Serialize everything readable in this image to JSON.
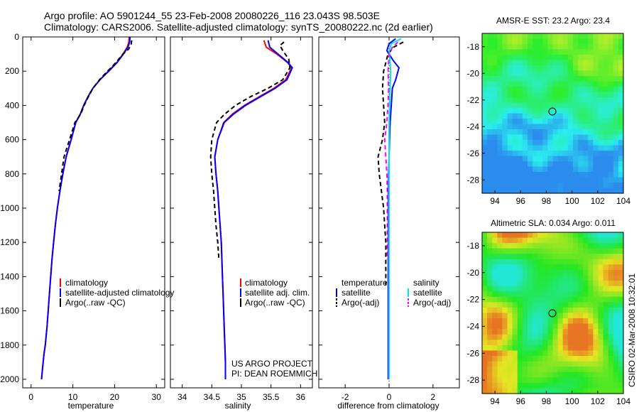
{
  "header": {
    "line1": "Argo profile: AO 5901244_55 23-Feb-2008 20080226_116 23.043S 98.503E",
    "line2": "Climatology: CARS2006. Satellite-adjusted climatology: synTS_20080222.nc (2d earlier)"
  },
  "credit": "CSIRO 02-Mar-2008 10:32:01",
  "project": {
    "line1": "US ARGO PROJECT",
    "line2": "PI: DEAN ROEMMICH"
  },
  "colors": {
    "climatology": "#ff0000",
    "satellite": "#0000ff",
    "argo": "#000000",
    "sat_sal": "#00e5e5",
    "argo_sal": "#ff00ff"
  },
  "chart_data": [
    {
      "type": "line",
      "xlabel": "temperature",
      "xlim": [
        -2,
        32
      ],
      "ylim": [
        2050,
        0
      ],
      "xticks": [
        0,
        10,
        20,
        30
      ],
      "yticks": [
        0,
        200,
        400,
        600,
        800,
        1000,
        1200,
        1400,
        1600,
        1800,
        2000
      ],
      "legend": [
        "climatology",
        "satellite-adjusted climatology",
        "Argo(..raw -QC)"
      ],
      "series": [
        {
          "name": "climatology",
          "color": "#ff0000",
          "dash": false,
          "x": [
            23.5,
            23.4,
            23.0,
            22.0,
            20.5,
            18.5,
            16.5,
            14.8,
            13.6,
            12.6,
            11.8,
            10.7,
            9.6,
            8.4,
            7.6,
            6.9,
            6.3,
            5.8,
            5.4,
            5.0,
            4.7,
            4.4,
            4.1,
            3.8,
            3.6,
            3.4,
            3.1,
            2.9,
            2.7,
            2.5
          ],
          "y": [
            0,
            30,
            60,
            100,
            150,
            200,
            250,
            300,
            350,
            400,
            450,
            500,
            600,
            700,
            800,
            900,
            1000,
            1100,
            1200,
            1300,
            1400,
            1500,
            1600,
            1700,
            1750,
            1800,
            1850,
            1900,
            1950,
            2000
          ]
        },
        {
          "name": "satellite-adjusted climatology",
          "color": "#0000ff",
          "dash": false,
          "x": [
            23.7,
            23.6,
            23.2,
            22.1,
            20.6,
            18.6,
            16.5,
            14.8,
            13.6,
            12.6,
            11.8,
            10.7,
            9.6,
            8.4,
            7.6,
            6.9,
            6.3,
            5.8,
            5.4,
            5.0,
            4.7,
            4.4,
            4.1,
            3.8,
            3.6,
            3.4,
            3.1,
            2.9,
            2.7,
            2.5
          ],
          "y": [
            0,
            30,
            60,
            100,
            150,
            200,
            250,
            300,
            350,
            400,
            450,
            500,
            600,
            700,
            800,
            900,
            1000,
            1100,
            1200,
            1300,
            1400,
            1500,
            1600,
            1700,
            1750,
            1800,
            1850,
            1900,
            1950,
            2000
          ]
        },
        {
          "name": "Argo(..raw -QC)",
          "color": "#000000",
          "dash": true,
          "x": [
            24.1,
            24.0,
            23.4,
            22.0,
            20.3,
            18.3,
            16.4,
            14.8,
            13.7,
            12.7,
            11.9,
            10.5,
            9.2,
            7.9,
            7.3,
            6.7
          ],
          "y": [
            20,
            40,
            70,
            100,
            150,
            200,
            250,
            300,
            350,
            400,
            450,
            500,
            600,
            700,
            800,
            900
          ]
        }
      ]
    },
    {
      "type": "line",
      "xlabel": "salinity",
      "xlim": [
        33.8,
        36.2
      ],
      "ylim": [
        2050,
        0
      ],
      "xticks": [
        34,
        34.5,
        35,
        35.5,
        36
      ],
      "legend": [
        "climatology",
        "satellite adj. clim.",
        "Argo(..raw -QC)"
      ],
      "series": [
        {
          "name": "climatology",
          "color": "#ff0000",
          "dash": false,
          "x": [
            35.38,
            35.42,
            35.6,
            35.78,
            35.85,
            35.75,
            35.55,
            35.3,
            35.05,
            34.85,
            34.7,
            34.6,
            34.55,
            34.57,
            34.6,
            34.62,
            34.64,
            34.66,
            34.67,
            34.68,
            34.69,
            34.7,
            34.71,
            34.72,
            34.73,
            34.73
          ],
          "y": [
            20,
            60,
            100,
            150,
            180,
            250,
            300,
            350,
            400,
            450,
            500,
            600,
            700,
            800,
            900,
            1000,
            1100,
            1200,
            1300,
            1400,
            1500,
            1600,
            1700,
            1800,
            1900,
            2000
          ]
        },
        {
          "name": "satellite adj. clim.",
          "color": "#0000ff",
          "dash": false,
          "x": [
            35.45,
            35.48,
            35.62,
            35.79,
            35.86,
            35.77,
            35.57,
            35.32,
            35.07,
            34.87,
            34.71,
            34.6,
            34.55,
            34.57,
            34.6,
            34.62,
            34.64,
            34.66,
            34.67,
            34.68,
            34.69,
            34.7,
            34.71,
            34.72,
            34.73,
            34.73
          ],
          "y": [
            20,
            60,
            100,
            150,
            180,
            250,
            300,
            350,
            400,
            450,
            500,
            600,
            700,
            800,
            900,
            1000,
            1100,
            1200,
            1300,
            1400,
            1500,
            1600,
            1700,
            1800,
            1900,
            2000
          ]
        },
        {
          "name": "Argo(..raw -QC)",
          "color": "#000000",
          "dash": true,
          "x": [
            35.72,
            35.65,
            35.7,
            35.8,
            35.82,
            35.7,
            35.45,
            35.15,
            34.9,
            34.72,
            34.58,
            34.5,
            34.48,
            34.5,
            34.53,
            34.55,
            34.57,
            34.6,
            34.62
          ],
          "y": [
            30,
            50,
            80,
            130,
            180,
            250,
            300,
            350,
            400,
            450,
            500,
            600,
            700,
            800,
            900,
            1000,
            1100,
            1200,
            1300
          ]
        }
      ]
    },
    {
      "type": "line",
      "xlabel": "difference from climatology",
      "xlim": [
        -3.2,
        3.2
      ],
      "ylim": [
        2050,
        0
      ],
      "xticks": [
        -2,
        0,
        2
      ],
      "legend": {
        "temperature_title": "temperature",
        "salinity_title": "salinity",
        "temperature": [
          "satellite",
          "Argo(-adj)"
        ],
        "salinity": [
          "satellite",
          "Argo(-adj)"
        ]
      },
      "series": [
        {
          "name": "temperature satellite",
          "color": "#0000ff",
          "dash": false,
          "x": [
            0.3,
            0.0,
            -0.1,
            0.0,
            0.2,
            0.45,
            0.3,
            0.15,
            0.1,
            0.05,
            0.02,
            0.0,
            -0.02,
            -0.03,
            -0.03,
            -0.03,
            -0.04,
            -0.04,
            -0.04,
            -0.04,
            -0.04,
            -0.04
          ],
          "y": [
            10,
            40,
            80,
            100,
            140,
            180,
            250,
            300,
            400,
            500,
            600,
            700,
            800,
            900,
            1000,
            1200,
            1400,
            1600,
            1700,
            1800,
            1900,
            2000
          ]
        },
        {
          "name": "temperature Argo(-adj)",
          "color": "#000000",
          "dash": true,
          "x": [
            0.65,
            0.2,
            -0.05,
            -0.25,
            -0.3,
            -0.25,
            -0.2,
            -0.3,
            -0.5,
            -0.45,
            -0.35,
            -0.25,
            -0.2,
            -0.15,
            -0.15,
            -0.15,
            -0.15
          ],
          "y": [
            30,
            60,
            100,
            200,
            300,
            400,
            500,
            600,
            700,
            800,
            900,
            1000,
            1100,
            1200,
            1300,
            1400,
            1450
          ]
        },
        {
          "name": "salinity satellite",
          "color": "#00e5e5",
          "dash": false,
          "x": [
            0.55,
            0.1,
            0.0,
            0.05,
            0.07,
            0.05,
            0.02,
            0.0,
            0.0,
            0.0,
            0.0,
            0.0,
            0.0,
            0.0,
            0.0,
            0.0
          ],
          "y": [
            10,
            40,
            80,
            150,
            200,
            300,
            400,
            500,
            600,
            800,
            1000,
            1200,
            1400,
            1600,
            1800,
            2000
          ]
        },
        {
          "name": "salinity Argo(-adj)",
          "color": "#ff00ff",
          "dash": true,
          "x": [
            0.4,
            0.15,
            0.0,
            -0.05,
            -0.02,
            -0.05,
            -0.1,
            -0.2,
            -0.15,
            -0.1,
            -0.08,
            -0.08,
            -0.08,
            -0.08
          ],
          "y": [
            30,
            60,
            100,
            200,
            300,
            400,
            500,
            600,
            700,
            800,
            900,
            1000,
            1100,
            1300
          ]
        }
      ]
    },
    {
      "type": "heatmap",
      "title": "AMSR-E SST: 23.2 Argo: 23.4",
      "xticks": [
        94,
        96,
        98,
        100,
        102,
        104
      ],
      "yticks": [
        -18,
        -20,
        -22,
        -24,
        -26,
        -28
      ],
      "xlim": [
        93,
        104
      ],
      "ylim": [
        -29,
        -17
      ],
      "marker": {
        "lon": 98.5,
        "lat": -23.04
      }
    },
    {
      "type": "heatmap",
      "title": "Altimetric SLA: 0.034 Argo: 0.011",
      "xticks": [
        94,
        96,
        98,
        100,
        102,
        104
      ],
      "yticks": [
        -18,
        -20,
        -22,
        -24,
        -26,
        -28
      ],
      "xlim": [
        93,
        104
      ],
      "ylim": [
        -29,
        -17
      ],
      "marker": {
        "lon": 98.5,
        "lat": -23.04
      }
    }
  ]
}
